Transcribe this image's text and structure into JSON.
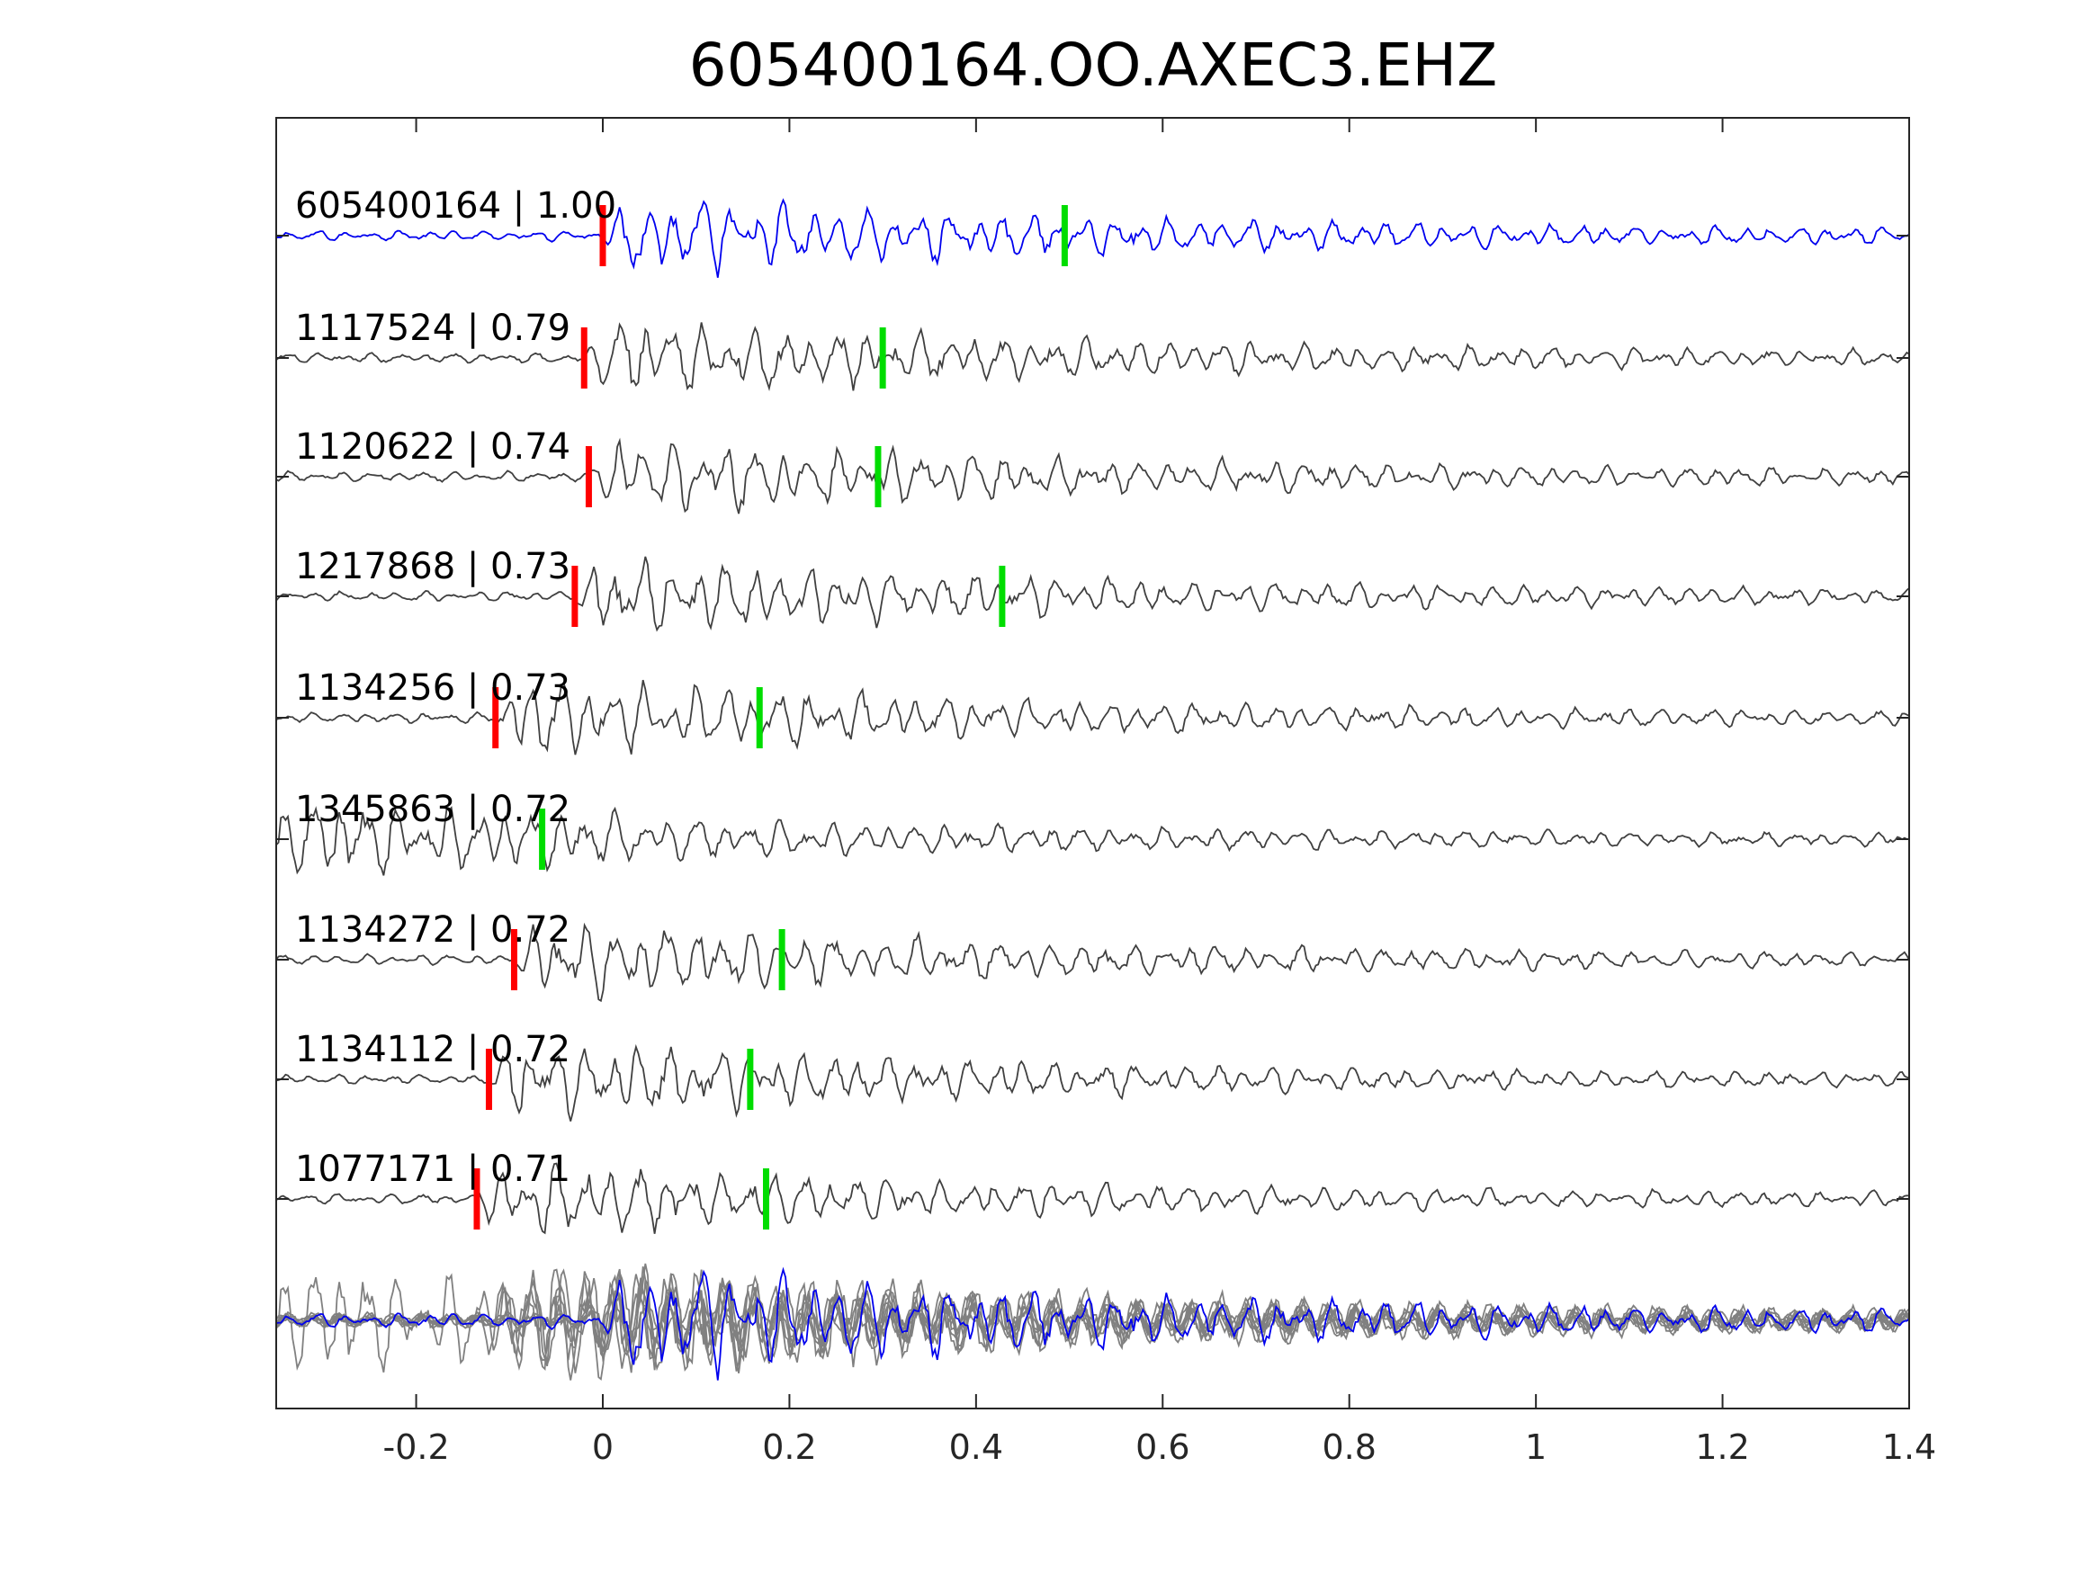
{
  "chart_data": {
    "type": "line",
    "title": "605400164.OO.AXEC3.EHZ",
    "xlabel": "",
    "ylabel": "",
    "xlim": [
      -0.35,
      1.4
    ],
    "xticks": [
      -0.2,
      0,
      0.2,
      0.4,
      0.6,
      0.8,
      1,
      1.2,
      1.4
    ],
    "xtick_labels": [
      "-0.2",
      "0",
      "0.2",
      "0.4",
      "0.6",
      "0.8",
      "1",
      "1.2",
      "1.4"
    ],
    "grid": false,
    "legend": "none",
    "colors": {
      "master": "#0000ee",
      "trace": "#404040",
      "overlay": "#808080",
      "p_pick": "#ff0000",
      "s_pick": "#00dd00",
      "axis": "#262626"
    },
    "series": [
      {
        "label": "605400164 | 1.00",
        "id": "605400164",
        "cc": 1.0,
        "p_pick": 0.0,
        "s_pick": 0.495,
        "color": "master"
      },
      {
        "label": "1117524 | 0.79",
        "id": "1117524",
        "cc": 0.79,
        "p_pick": -0.02,
        "s_pick": 0.3,
        "color": "trace"
      },
      {
        "label": "1120622 | 0.74",
        "id": "1120622",
        "cc": 0.74,
        "p_pick": -0.015,
        "s_pick": 0.295,
        "color": "trace"
      },
      {
        "label": "1217868 | 0.73",
        "id": "1217868",
        "cc": 0.73,
        "p_pick": -0.03,
        "s_pick": 0.428,
        "color": "trace"
      },
      {
        "label": "1134256 | 0.73",
        "id": "1134256",
        "cc": 0.73,
        "p_pick": -0.115,
        "s_pick": 0.168,
        "color": "trace"
      },
      {
        "label": "1345863 | 0.72",
        "id": "1345863",
        "cc": 0.72,
        "p_pick": null,
        "s_pick": -0.065,
        "color": "trace"
      },
      {
        "label": "1134272 | 0.72",
        "id": "1134272",
        "cc": 0.72,
        "p_pick": -0.095,
        "s_pick": 0.192,
        "color": "trace"
      },
      {
        "label": "1134112 | 0.72",
        "id": "1134112",
        "cc": 0.72,
        "p_pick": -0.122,
        "s_pick": 0.158,
        "color": "trace"
      },
      {
        "label": "1077171 | 0.71",
        "id": "1077171",
        "cc": 0.71,
        "p_pick": -0.135,
        "s_pick": 0.175,
        "color": "trace"
      }
    ],
    "stack": {
      "description_visible": false
    }
  }
}
